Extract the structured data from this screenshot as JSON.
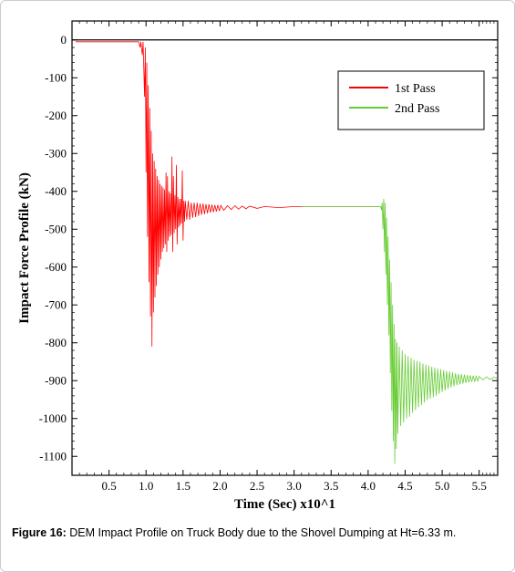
{
  "chart": {
    "type": "line",
    "title": null,
    "xlabel": "Time (Sec) x10^1",
    "ylabel": "Impact Force Profile (kN)",
    "label_fontsize": 15,
    "tick_fontsize": 13,
    "xlim": [
      0.0,
      5.75
    ],
    "ylim": [
      -1150,
      50
    ],
    "xtick_step": 0.5,
    "ytick_step": 100,
    "xticks": [
      0.5,
      1.0,
      1.5,
      2.0,
      2.5,
      3.0,
      3.5,
      4.0,
      4.5,
      5.0,
      5.5
    ],
    "yticks": [
      0,
      -100,
      -200,
      -300,
      -400,
      -500,
      -600,
      -700,
      -800,
      -900,
      -1000,
      -1100
    ],
    "background_color": "#ffffff",
    "border_color": "#000000",
    "axis_line_width": 1.2,
    "series_line_width": 0.8,
    "minor_tick_count_x": 4,
    "minor_tick_count_y": 4,
    "legend": {
      "items": [
        {
          "label": "1st Pass",
          "color": "#ff0000"
        },
        {
          "label": "2nd Pass",
          "color": "#66cc33"
        }
      ],
      "position": "top-right",
      "box_border": "#000000",
      "box_bg": "#ffffff",
      "fontsize": 14
    },
    "series": [
      {
        "name": "1st Pass",
        "color": "#ff0000",
        "line_width": 0.8,
        "points": [
          [
            0.05,
            -5
          ],
          [
            0.7,
            -5
          ],
          [
            0.8,
            -5
          ],
          [
            0.9,
            -5
          ],
          [
            0.92,
            -20
          ],
          [
            0.93,
            -5
          ],
          [
            0.95,
            -40
          ],
          [
            0.96,
            -5
          ],
          [
            0.98,
            -150
          ],
          [
            0.99,
            -20
          ],
          [
            1.0,
            -350
          ],
          [
            1.01,
            -60
          ],
          [
            1.02,
            -520
          ],
          [
            1.03,
            -120
          ],
          [
            1.04,
            -640
          ],
          [
            1.05,
            -180
          ],
          [
            1.06,
            -730
          ],
          [
            1.07,
            -240
          ],
          [
            1.08,
            -810
          ],
          [
            1.09,
            -300
          ],
          [
            1.1,
            -720
          ],
          [
            1.11,
            -320
          ],
          [
            1.12,
            -680
          ],
          [
            1.13,
            -340
          ],
          [
            1.14,
            -650
          ],
          [
            1.15,
            -360
          ],
          [
            1.16,
            -620
          ],
          [
            1.17,
            -370
          ],
          [
            1.18,
            -600
          ],
          [
            1.19,
            -380
          ],
          [
            1.2,
            -580
          ],
          [
            1.21,
            -385
          ],
          [
            1.22,
            -560
          ],
          [
            1.23,
            -390
          ],
          [
            1.24,
            -550
          ],
          [
            1.25,
            -395
          ],
          [
            1.26,
            -540
          ],
          [
            1.27,
            -350
          ],
          [
            1.28,
            -560
          ],
          [
            1.29,
            -360
          ],
          [
            1.3,
            -530
          ],
          [
            1.31,
            -400
          ],
          [
            1.32,
            -520
          ],
          [
            1.33,
            -405
          ],
          [
            1.34,
            -515
          ],
          [
            1.35,
            -308
          ],
          [
            1.36,
            -560
          ],
          [
            1.37,
            -360
          ],
          [
            1.38,
            -510
          ],
          [
            1.39,
            -410
          ],
          [
            1.4,
            -500
          ],
          [
            1.41,
            -330
          ],
          [
            1.42,
            -540
          ],
          [
            1.43,
            -415
          ],
          [
            1.44,
            -495
          ],
          [
            1.45,
            -420
          ],
          [
            1.46,
            -490
          ],
          [
            1.47,
            -420
          ],
          [
            1.48,
            -485
          ],
          [
            1.49,
            -345
          ],
          [
            1.5,
            -530
          ],
          [
            1.51,
            -425
          ],
          [
            1.52,
            -480
          ],
          [
            1.53,
            -425
          ],
          [
            1.55,
            -475
          ],
          [
            1.57,
            -425
          ],
          [
            1.59,
            -475
          ],
          [
            1.61,
            -430
          ],
          [
            1.63,
            -470
          ],
          [
            1.65,
            -430
          ],
          [
            1.67,
            -468
          ],
          [
            1.69,
            -430
          ],
          [
            1.71,
            -465
          ],
          [
            1.73,
            -432
          ],
          [
            1.75,
            -462
          ],
          [
            1.77,
            -432
          ],
          [
            1.79,
            -460
          ],
          [
            1.81,
            -434
          ],
          [
            1.83,
            -458
          ],
          [
            1.85,
            -434
          ],
          [
            1.87,
            -456
          ],
          [
            1.89,
            -435
          ],
          [
            1.91,
            -455
          ],
          [
            1.93,
            -436
          ],
          [
            1.95,
            -453
          ],
          [
            1.97,
            -436
          ],
          [
            1.99,
            -452
          ],
          [
            2.01,
            -437
          ],
          [
            2.05,
            -450
          ],
          [
            2.1,
            -438
          ],
          [
            2.15,
            -448
          ],
          [
            2.2,
            -438
          ],
          [
            2.25,
            -447
          ],
          [
            2.3,
            -439
          ],
          [
            2.35,
            -446
          ],
          [
            2.4,
            -439
          ],
          [
            2.5,
            -445
          ],
          [
            2.6,
            -440
          ],
          [
            2.8,
            -443
          ],
          [
            3.0,
            -440
          ],
          [
            3.5,
            -440
          ],
          [
            4.0,
            -440
          ],
          [
            4.1,
            -440
          ],
          [
            4.15,
            -440
          ]
        ]
      },
      {
        "name": "2nd Pass",
        "color": "#66cc33",
        "line_width": 0.8,
        "points": [
          [
            3.1,
            -440
          ],
          [
            3.5,
            -440
          ],
          [
            4.0,
            -440
          ],
          [
            4.1,
            -440
          ],
          [
            4.15,
            -440
          ],
          [
            4.17,
            -440
          ],
          [
            4.18,
            -450
          ],
          [
            4.19,
            -430
          ],
          [
            4.2,
            -500
          ],
          [
            4.21,
            -420
          ],
          [
            4.22,
            -560
          ],
          [
            4.23,
            -430
          ],
          [
            4.24,
            -620
          ],
          [
            4.25,
            -470
          ],
          [
            4.26,
            -700
          ],
          [
            4.27,
            -520
          ],
          [
            4.28,
            -780
          ],
          [
            4.29,
            -580
          ],
          [
            4.3,
            -880
          ],
          [
            4.31,
            -640
          ],
          [
            4.32,
            -980
          ],
          [
            4.33,
            -700
          ],
          [
            4.34,
            -1060
          ],
          [
            4.35,
            -750
          ],
          [
            4.36,
            -1120
          ],
          [
            4.37,
            -790
          ],
          [
            4.38,
            -1080
          ],
          [
            4.39,
            -800
          ],
          [
            4.4,
            -1040
          ],
          [
            4.42,
            -810
          ],
          [
            4.44,
            -1020
          ],
          [
            4.46,
            -820
          ],
          [
            4.48,
            -1010
          ],
          [
            4.5,
            -830
          ],
          [
            4.52,
            -1000
          ],
          [
            4.54,
            -835
          ],
          [
            4.56,
            -995
          ],
          [
            4.58,
            -840
          ],
          [
            4.6,
            -985
          ],
          [
            4.62,
            -845
          ],
          [
            4.64,
            -978
          ],
          [
            4.66,
            -848
          ],
          [
            4.68,
            -970
          ],
          [
            4.7,
            -850
          ],
          [
            4.72,
            -965
          ],
          [
            4.74,
            -855
          ],
          [
            4.76,
            -958
          ],
          [
            4.78,
            -858
          ],
          [
            4.8,
            -952
          ],
          [
            4.82,
            -860
          ],
          [
            4.84,
            -948
          ],
          [
            4.86,
            -863
          ],
          [
            4.88,
            -944
          ],
          [
            4.9,
            -865
          ],
          [
            4.92,
            -940
          ],
          [
            4.94,
            -868
          ],
          [
            4.96,
            -935
          ],
          [
            4.98,
            -870
          ],
          [
            5.0,
            -930
          ],
          [
            5.02,
            -872
          ],
          [
            5.04,
            -926
          ],
          [
            5.06,
            -874
          ],
          [
            5.08,
            -922
          ],
          [
            5.1,
            -876
          ],
          [
            5.12,
            -918
          ],
          [
            5.14,
            -878
          ],
          [
            5.16,
            -915
          ],
          [
            5.18,
            -880
          ],
          [
            5.2,
            -912
          ],
          [
            5.22,
            -882
          ],
          [
            5.24,
            -910
          ],
          [
            5.26,
            -883
          ],
          [
            5.28,
            -908
          ],
          [
            5.3,
            -884
          ],
          [
            5.32,
            -906
          ],
          [
            5.34,
            -885
          ],
          [
            5.36,
            -905
          ],
          [
            5.38,
            -886
          ],
          [
            5.4,
            -903
          ],
          [
            5.42,
            -887
          ],
          [
            5.44,
            -902
          ],
          [
            5.46,
            -888
          ],
          [
            5.48,
            -901
          ],
          [
            5.5,
            -889
          ],
          [
            5.55,
            -898
          ],
          [
            5.6,
            -890
          ],
          [
            5.65,
            -897
          ],
          [
            5.7,
            -891
          ],
          [
            5.74,
            -893
          ]
        ]
      }
    ]
  },
  "caption": {
    "prefix": "Figure 16:",
    "text": " DEM Impact Profile on Truck Body due to the Shovel Dumping at Ht=6.33 m."
  }
}
